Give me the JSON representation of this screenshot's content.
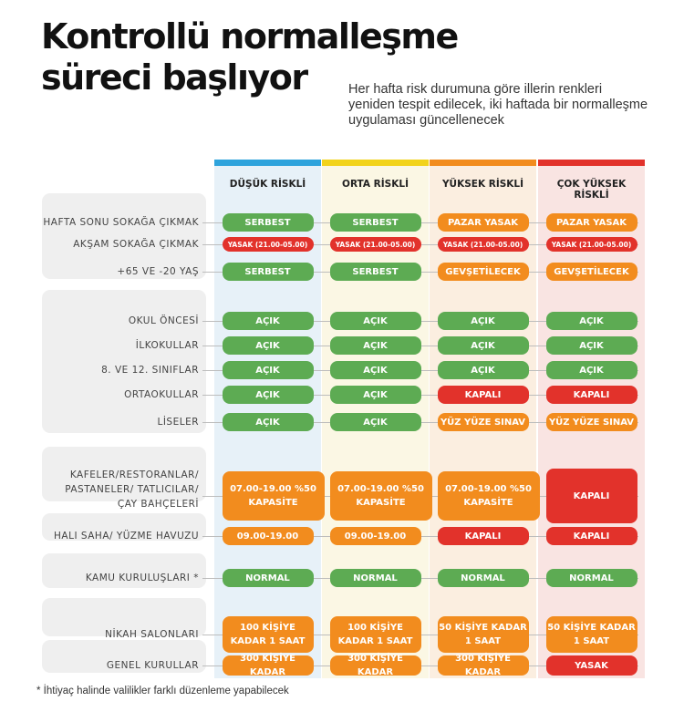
{
  "title": "Kontrollü normalleşme süreci başlıyor",
  "subtitle": "Her hafta risk durumuna göre illerin renkleri yeniden tespit edilecek, iki haftada bir normalleşme uygulaması güncellenecek",
  "columns": [
    {
      "label": "DÜŞÜK RİSKLİ",
      "color": "#2ea3dc",
      "bg": "#e7f1f8"
    },
    {
      "label": "ORTA RİSKLİ",
      "color": "#f2d31b",
      "bg": "#fbf7e4"
    },
    {
      "label": "YÜKSEK RİSKLİ",
      "color": "#f28c1e",
      "bg": "#fbeee0"
    },
    {
      "label": "ÇOK YÜKSEK RİSKLİ",
      "color": "#e2322b",
      "bg": "#f9e4e2"
    }
  ],
  "rows": [
    {
      "label": "HAFTA SONU SOKAĞA ÇIKMAK",
      "cells": [
        {
          "text": "SERBEST",
          "color": "green"
        },
        {
          "text": "SERBEST",
          "color": "green"
        },
        {
          "text": "PAZAR  YASAK",
          "color": "orange"
        },
        {
          "text": "PAZAR  YASAK",
          "color": "orange"
        }
      ]
    },
    {
      "label": "AKŞAM SOKAĞA ÇIKMAK",
      "cells": [
        {
          "text": "YASAK (21.00-05.00)",
          "color": "red"
        },
        {
          "text": "YASAK (21.00-05.00)",
          "color": "red"
        },
        {
          "text": "YASAK (21.00-05.00)",
          "color": "red"
        },
        {
          "text": "YASAK (21.00-05.00)",
          "color": "red"
        }
      ]
    },
    {
      "label": "+65 VE -20 YAŞ",
      "cells": [
        {
          "text": "SERBEST",
          "color": "green"
        },
        {
          "text": "SERBEST",
          "color": "green"
        },
        {
          "text": "GEVŞETİLECEK",
          "color": "orange"
        },
        {
          "text": "GEVŞETİLECEK",
          "color": "orange"
        }
      ]
    },
    {
      "label": "OKUL ÖNCESİ",
      "cells": [
        {
          "text": "AÇIK",
          "color": "green"
        },
        {
          "text": "AÇIK",
          "color": "green"
        },
        {
          "text": "AÇIK",
          "color": "green"
        },
        {
          "text": "AÇIK",
          "color": "green"
        }
      ]
    },
    {
      "label": "İLKOKULLAR",
      "cells": [
        {
          "text": "AÇIK",
          "color": "green"
        },
        {
          "text": "AÇIK",
          "color": "green"
        },
        {
          "text": "AÇIK",
          "color": "green"
        },
        {
          "text": "AÇIK",
          "color": "green"
        }
      ]
    },
    {
      "label": "8. VE 12. SINIFLAR",
      "cells": [
        {
          "text": "AÇIK",
          "color": "green"
        },
        {
          "text": "AÇIK",
          "color": "green"
        },
        {
          "text": "AÇIK",
          "color": "green"
        },
        {
          "text": "AÇIK",
          "color": "green"
        }
      ]
    },
    {
      "label": "ORTAOKULLAR",
      "cells": [
        {
          "text": "AÇIK",
          "color": "green"
        },
        {
          "text": "AÇIK",
          "color": "green"
        },
        {
          "text": "KAPALI",
          "color": "red"
        },
        {
          "text": "KAPALI",
          "color": "red"
        }
      ]
    },
    {
      "label": "LİSELER",
      "cells": [
        {
          "text": "AÇIK",
          "color": "green"
        },
        {
          "text": "AÇIK",
          "color": "green"
        },
        {
          "text": "YÜZ YÜZE SINAV",
          "color": "orange"
        },
        {
          "text": "YÜZ YÜZE SINAV",
          "color": "orange"
        }
      ]
    },
    {
      "label": "KAFELER/RESTORANLAR/ PASTANELER/ TATLICILAR/ ÇAY BAHÇELERİ",
      "cells": [
        {
          "text": "07.00-19.00 %50 KAPASİTE",
          "color": "orange"
        },
        {
          "text": "07.00-19.00 %50 KAPASİTE",
          "color": "orange"
        },
        {
          "text": "07.00-19.00 %50 KAPASİTE",
          "color": "orange"
        },
        {
          "text": "KAPALI",
          "color": "red"
        }
      ]
    },
    {
      "label": "HALI SAHA/ YÜZME HAVUZU",
      "cells": [
        {
          "text": "09.00-19.00",
          "color": "orange"
        },
        {
          "text": "09.00-19.00",
          "color": "orange"
        },
        {
          "text": "KAPALI",
          "color": "red"
        },
        {
          "text": "KAPALI",
          "color": "red"
        }
      ]
    },
    {
      "label": "KAMU KURULUŞLARI *",
      "cells": [
        {
          "text": "NORMAL",
          "color": "green"
        },
        {
          "text": "NORMAL",
          "color": "green"
        },
        {
          "text": "NORMAL",
          "color": "green"
        },
        {
          "text": "NORMAL",
          "color": "green"
        }
      ]
    },
    {
      "label": "NİKAH SALONLARI",
      "cells": [
        {
          "text": "100 KİŞİYE KADAR 1 SAAT",
          "color": "orange"
        },
        {
          "text": "100 KİŞİYE KADAR 1 SAAT",
          "color": "orange"
        },
        {
          "text": "50 KİŞİYE KADAR 1 SAAT",
          "color": "orange"
        },
        {
          "text": "50 KİŞİYE KADAR 1 SAAT",
          "color": "orange"
        }
      ]
    },
    {
      "label": "GENEL KURULLAR",
      "cells": [
        {
          "text": "300 KİŞİYE KADAR",
          "color": "orange"
        },
        {
          "text": "300 KİŞİYE KADAR",
          "color": "orange"
        },
        {
          "text": "300 KİŞİYE KADAR",
          "color": "orange"
        },
        {
          "text": "YASAK",
          "color": "red"
        }
      ]
    }
  ],
  "footnote": "* İhtiyaç halinde valilikler farklı düzenleme yapabilecek"
}
